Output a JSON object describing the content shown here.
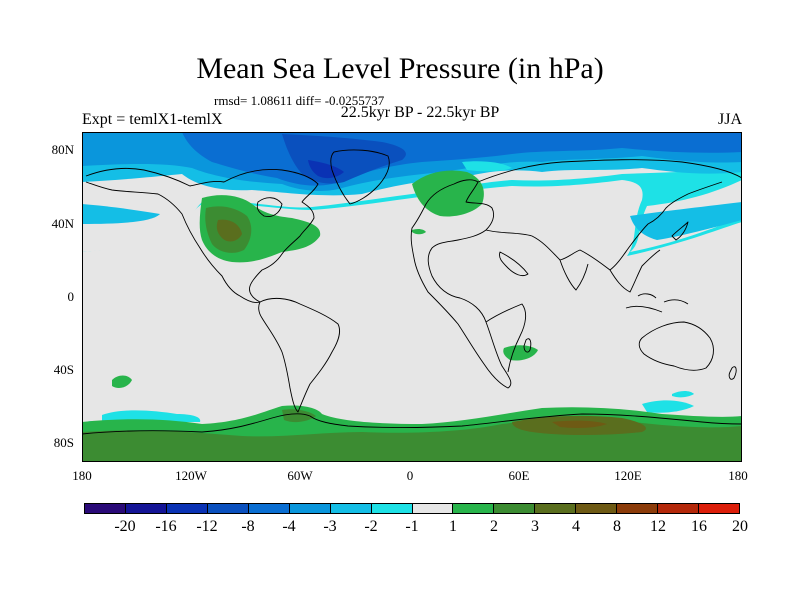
{
  "title": "Mean Sea Level Pressure (in hPa)",
  "stats": "rmsd= 1.08611 diff= -0.0255737",
  "expt": "Expt = temlX1-temlX",
  "period": "22.5kyr BP - 22.5kyr BP",
  "season": "JJA",
  "lat_ticks": [
    "80N",
    "40N",
    "0",
    "40S",
    "80S"
  ],
  "lon_ticks": [
    "180",
    "120W",
    "60W",
    "0",
    "60E",
    "120E",
    "180"
  ],
  "legend": {
    "colors": [
      "#2a0a78",
      "#141496",
      "#0a32b4",
      "#0a50be",
      "#0a6ed2",
      "#0a96dc",
      "#14bee6",
      "#1ee1e6",
      "#e6e6e6",
      "#28b44b",
      "#3c8c32",
      "#5a6e1e",
      "#6e5a14",
      "#8c3c0a",
      "#b4280a",
      "#dc1e0a"
    ],
    "labels": [
      "-20",
      "-16",
      "-12",
      "-8",
      "-4",
      "-3",
      "-2",
      "-1",
      "1",
      "2",
      "3",
      "4",
      "8",
      "12",
      "16",
      "20"
    ]
  }
}
